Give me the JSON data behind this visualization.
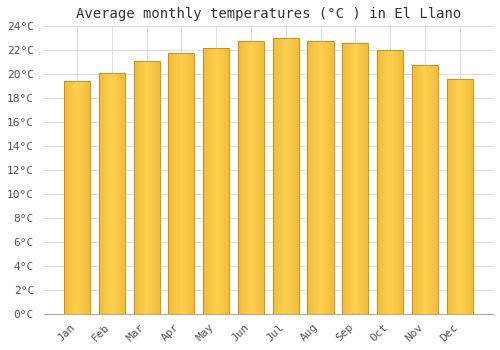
{
  "title": "Average monthly temperatures (°C ) in El Llano",
  "months": [
    "Jan",
    "Feb",
    "Mar",
    "Apr",
    "May",
    "Jun",
    "Jul",
    "Aug",
    "Sep",
    "Oct",
    "Nov",
    "Dec"
  ],
  "temperatures": [
    19.4,
    20.1,
    21.1,
    21.8,
    22.2,
    22.8,
    23.0,
    22.8,
    22.6,
    22.0,
    20.8,
    19.6
  ],
  "bar_color_center": "#FFD04D",
  "bar_color_edge": "#E89000",
  "ylim": [
    0,
    24
  ],
  "ytick_step": 2,
  "background_color": "#ffffff",
  "grid_color": "#dddddd",
  "title_fontsize": 10,
  "tick_fontsize": 8,
  "font_family": "monospace",
  "fig_width": 5.0,
  "fig_height": 3.5,
  "dpi": 100
}
